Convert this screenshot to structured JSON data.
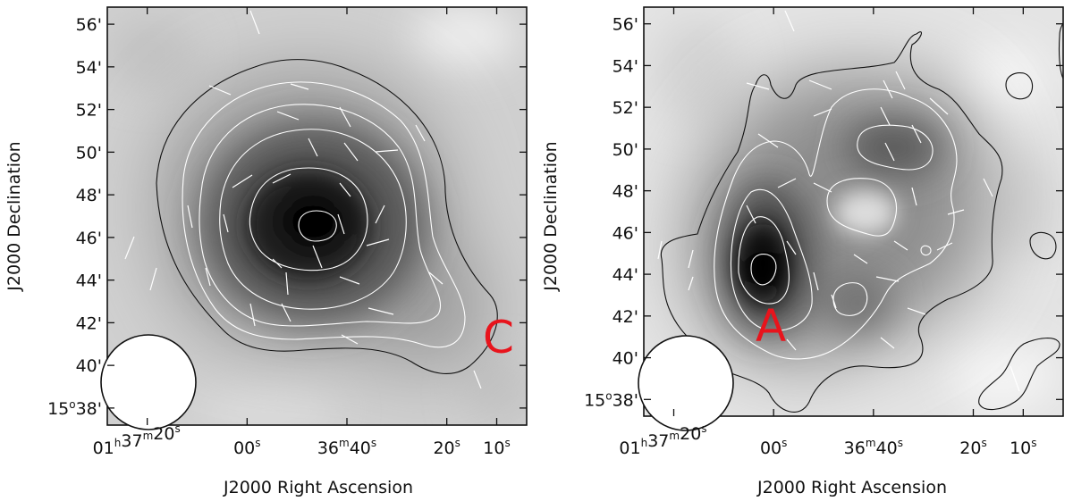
{
  "colors": {
    "annotation": "#e8141c",
    "contour_outer": "#111111",
    "contour_inner": "#ffffff",
    "vectors": "#ffffff",
    "background_gray": "#cfcfcf",
    "peak_gray": "#000000"
  },
  "chart_data": [
    {
      "type": "heatmap",
      "colormap": "grayscale",
      "title": "",
      "xlabel": "J2000 Right Ascension",
      "ylabel": "J2000 Declination",
      "xlim_seconds_RA": [
        4,
        88
      ],
      "ylim_arcmin_Dec": [
        37.2,
        56.8
      ],
      "x_ticks": [
        {
          "value_s": 80,
          "h": "01",
          "m": "37",
          "s": "20",
          "compound": true
        },
        {
          "value_s": 60,
          "s": "00"
        },
        {
          "value_s": 40,
          "m": "36",
          "s": "40"
        },
        {
          "value_s": 20,
          "s": "20"
        },
        {
          "value_s": 10,
          "s": "10"
        }
      ],
      "y_ticks": [
        {
          "value": 38,
          "label_deg": "15",
          "label_min": "38'"
        },
        {
          "value": 40,
          "label": "40'"
        },
        {
          "value": 42,
          "label": "42'"
        },
        {
          "value": 44,
          "label": "44'"
        },
        {
          "value": 46,
          "label": "46'"
        },
        {
          "value": 48,
          "label": "48'"
        },
        {
          "value": 50,
          "label": "50'"
        },
        {
          "value": 52,
          "label": "52'"
        },
        {
          "value": 54,
          "label": "54'"
        },
        {
          "value": 56,
          "label": "56'"
        }
      ],
      "peak": {
        "ra_s": 41,
        "dec": 46.6
      },
      "contour_levels_count": 5,
      "polarization_vectors": true,
      "beam": {
        "ra_s": 80,
        "dec": 39.3,
        "radius_arcmin": 2.1
      },
      "annotation": {
        "text": "C",
        "ra_s": 8,
        "dec": 41.6
      }
    },
    {
      "type": "heatmap",
      "colormap": "grayscale",
      "title": "",
      "xlabel": "J2000 Right Ascension",
      "ylabel": "J2000 Declination",
      "xlim_seconds_RA": [
        2,
        86
      ],
      "ylim_arcmin_Dec": [
        37.2,
        56.8
      ],
      "x_ticks": [
        {
          "value_s": 80,
          "h": "01",
          "m": "37",
          "s": "20",
          "compound": true
        },
        {
          "value_s": 60,
          "s": "00"
        },
        {
          "value_s": 40,
          "m": "36",
          "s": "40"
        },
        {
          "value_s": 20,
          "s": "20"
        },
        {
          "value_s": 10,
          "s": "10"
        }
      ],
      "y_ticks": [
        {
          "value": 38,
          "label_deg": "15",
          "label_min": "38'"
        },
        {
          "value": 40,
          "label": "40'"
        },
        {
          "value": 42,
          "label": "42'"
        },
        {
          "value": 44,
          "label": "44'"
        },
        {
          "value": 46,
          "label": "46'"
        },
        {
          "value": 48,
          "label": "48'"
        },
        {
          "value": 50,
          "label": "50'"
        },
        {
          "value": 52,
          "label": "52'"
        },
        {
          "value": 54,
          "label": "54'"
        },
        {
          "value": 56,
          "label": "56'"
        }
      ],
      "peak": {
        "ra_s": 60,
        "dec": 44.5
      },
      "secondary_peak": {
        "ra_s": 30,
        "dec": 49.8
      },
      "contour_levels_count": 5,
      "polarization_vectors": true,
      "beam": {
        "ra_s": 78,
        "dec": 39.3,
        "radius_arcmin": 2.2
      },
      "annotation": {
        "text": "A",
        "ra_s": 56,
        "dec": 42.0
      }
    }
  ]
}
